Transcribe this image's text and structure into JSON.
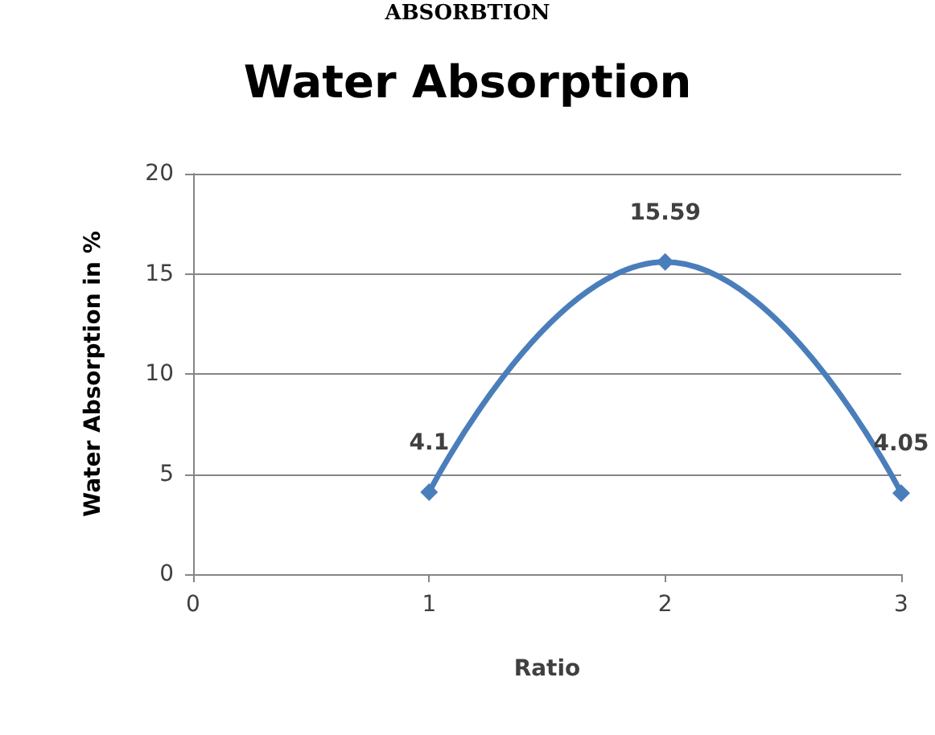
{
  "chart_data": {
    "type": "line",
    "title": "Water Absorption",
    "xlabel": "Ratio",
    "ylabel": "Water Absorption in %",
    "annotations": [
      "ABSORBTION"
    ],
    "x": [
      1,
      2,
      3
    ],
    "series": [
      {
        "color": "#4a7ebb",
        "values": [
          4.1,
          15.59,
          4.05
        ]
      }
    ],
    "xlim": [
      0,
      3
    ],
    "xticks": [
      0,
      1,
      2,
      3
    ],
    "ylim": [
      0,
      20
    ],
    "yticks": [
      0,
      5,
      10,
      15,
      20
    ],
    "grid": "y",
    "marker": "diamond",
    "line_style": "solid",
    "data_labels": true
  }
}
